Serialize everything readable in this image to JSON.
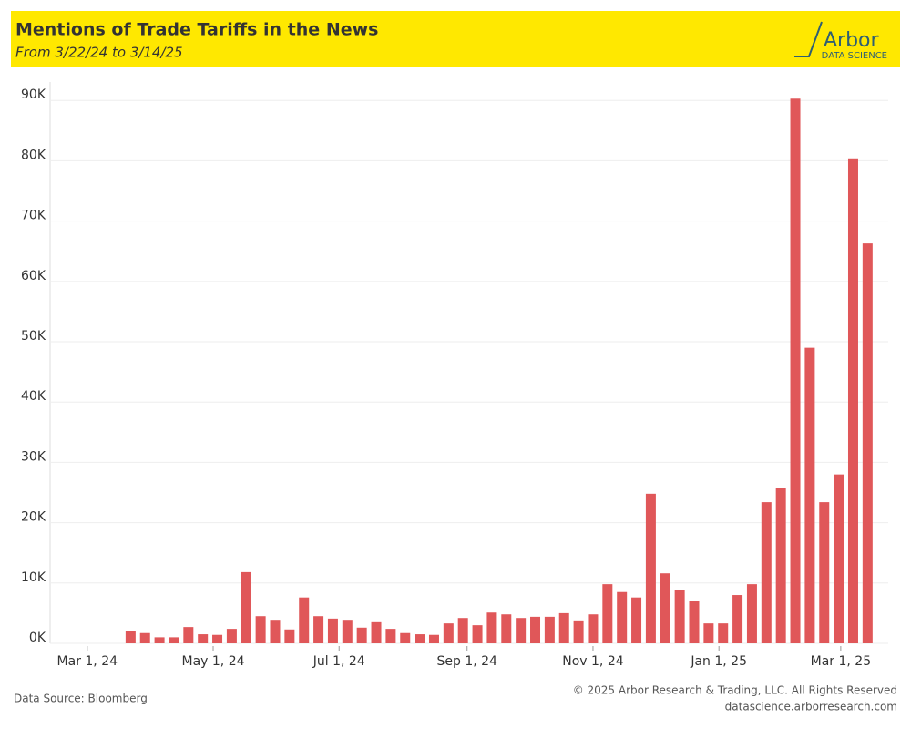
{
  "header": {
    "title": "Mentions of Trade Tariffs in the News",
    "subtitle": "From 3/22/24 to 3/14/25",
    "logo": "Arbor",
    "logo_sub": "DATA SCIENCE"
  },
  "chart_data": {
    "type": "bar",
    "x": [
      "2024-03-22",
      "2024-03-29",
      "2024-04-05",
      "2024-04-12",
      "2024-04-19",
      "2024-04-26",
      "2024-05-03",
      "2024-05-10",
      "2024-05-17",
      "2024-05-24",
      "2024-05-31",
      "2024-06-07",
      "2024-06-14",
      "2024-06-21",
      "2024-06-28",
      "2024-07-05",
      "2024-07-12",
      "2024-07-19",
      "2024-07-26",
      "2024-08-02",
      "2024-08-09",
      "2024-08-16",
      "2024-08-23",
      "2024-08-30",
      "2024-09-06",
      "2024-09-13",
      "2024-09-20",
      "2024-09-27",
      "2024-10-04",
      "2024-10-11",
      "2024-10-18",
      "2024-10-25",
      "2024-11-01",
      "2024-11-08",
      "2024-11-15",
      "2024-11-22",
      "2024-11-29",
      "2024-12-06",
      "2024-12-13",
      "2024-12-20",
      "2024-12-27",
      "2025-01-03",
      "2025-01-10",
      "2025-01-17",
      "2025-01-24",
      "2025-01-31",
      "2025-02-07",
      "2025-02-14",
      "2025-02-21",
      "2025-02-28",
      "2025-03-07",
      "2025-03-14"
    ],
    "values": [
      2100,
      1700,
      1000,
      1000,
      2700,
      1500,
      1400,
      2400,
      11800,
      4500,
      3900,
      2300,
      7600,
      4500,
      4100,
      3900,
      2600,
      3500,
      2400,
      1700,
      1500,
      1400,
      3300,
      4200,
      3000,
      5100,
      4800,
      4200,
      4400,
      4400,
      5000,
      3800,
      4800,
      9800,
      8500,
      7600,
      24800,
      11600,
      8800,
      7100,
      3300,
      3300,
      8000,
      9800,
      23400,
      25800,
      90300,
      49000,
      23400,
      28000,
      80400,
      66300
    ],
    "color": "#e05759",
    "xlim": [
      "2024-02-12",
      "2025-03-24"
    ],
    "xticks": [
      {
        "value": "2024-03-01",
        "label": "Mar 1, 24"
      },
      {
        "value": "2024-05-01",
        "label": "May 1, 24"
      },
      {
        "value": "2024-07-01",
        "label": "Jul 1, 24"
      },
      {
        "value": "2024-09-01",
        "label": "Sep 1, 24"
      },
      {
        "value": "2024-11-01",
        "label": "Nov 1, 24"
      },
      {
        "value": "2025-01-01",
        "label": "Jan 1, 25"
      },
      {
        "value": "2025-03-01",
        "label": "Mar 1, 25"
      }
    ],
    "ylim": [
      0,
      92000
    ],
    "yticks": [
      {
        "value": 0,
        "label": "0K"
      },
      {
        "value": 10000,
        "label": "10K"
      },
      {
        "value": 20000,
        "label": "20K"
      },
      {
        "value": 30000,
        "label": "30K"
      },
      {
        "value": 40000,
        "label": "40K"
      },
      {
        "value": 50000,
        "label": "50K"
      },
      {
        "value": 60000,
        "label": "60K"
      },
      {
        "value": 70000,
        "label": "70K"
      },
      {
        "value": 80000,
        "label": "80K"
      },
      {
        "value": 90000,
        "label": "90K"
      }
    ],
    "grid": true
  },
  "footer": {
    "source": "Data Source: Bloomberg",
    "copyright": "© 2025 Arbor Research & Trading, LLC. All Rights Reserved",
    "url": "datascience.arborresearch.com"
  }
}
